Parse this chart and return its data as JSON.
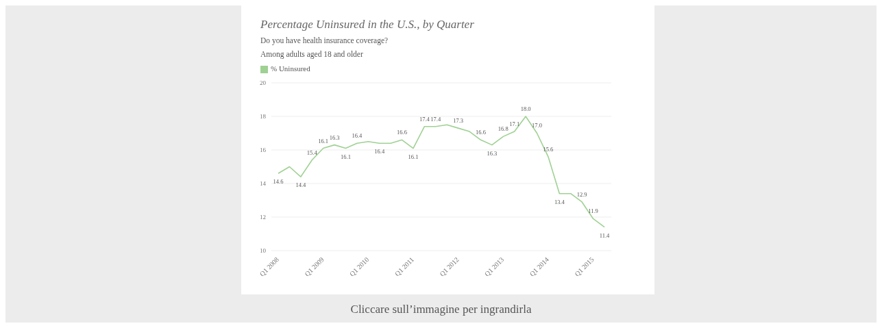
{
  "chart_data": {
    "type": "line",
    "title": "Percentage Uninsured in the U.S., by Quarter",
    "subtitle": "Do you have health insurance coverage?\nAmong adults aged 18 and older",
    "categories": [
      "Q1 2008",
      null,
      null,
      null,
      "Q1 2009",
      null,
      null,
      null,
      "Q1 2010",
      null,
      null,
      null,
      "Q1 2011",
      null,
      null,
      null,
      "Q1 2012",
      null,
      null,
      null,
      "Q1 2013",
      null,
      null,
      null,
      "Q1 2014",
      null,
      null,
      null,
      "Q1 2015",
      null
    ],
    "series": [
      {
        "name": "% Uninsured",
        "color": "#9fd193",
        "values": [
          14.6,
          15.0,
          14.4,
          15.4,
          16.1,
          16.3,
          16.1,
          16.4,
          16.5,
          16.4,
          16.4,
          16.6,
          16.1,
          17.4,
          17.4,
          17.5,
          17.3,
          17.1,
          16.6,
          16.3,
          16.8,
          17.1,
          18.0,
          17.0,
          15.6,
          13.4,
          13.4,
          12.9,
          11.9,
          11.4
        ],
        "value_labels": [
          "14.6",
          null,
          "14.4",
          "15.4",
          "16.1",
          "16.3",
          "16.1",
          "16.4",
          null,
          "16.4",
          null,
          "16.6",
          "16.1",
          "17.4",
          "17.4",
          null,
          "17.3",
          null,
          "16.6",
          "16.3",
          "16.8",
          "17.1",
          "18.0",
          "17.0",
          "15.6",
          "13.4",
          null,
          "12.9",
          "11.9",
          "11.4"
        ]
      }
    ],
    "ylim": [
      10,
      20
    ],
    "yticks": [
      10,
      12,
      14,
      16,
      18,
      20
    ],
    "grid": "y",
    "legend": "top left",
    "marker": "none",
    "line_style": "solid",
    "annotations": [
      "Cliccare sull’immagine per ingrandirla"
    ]
  }
}
